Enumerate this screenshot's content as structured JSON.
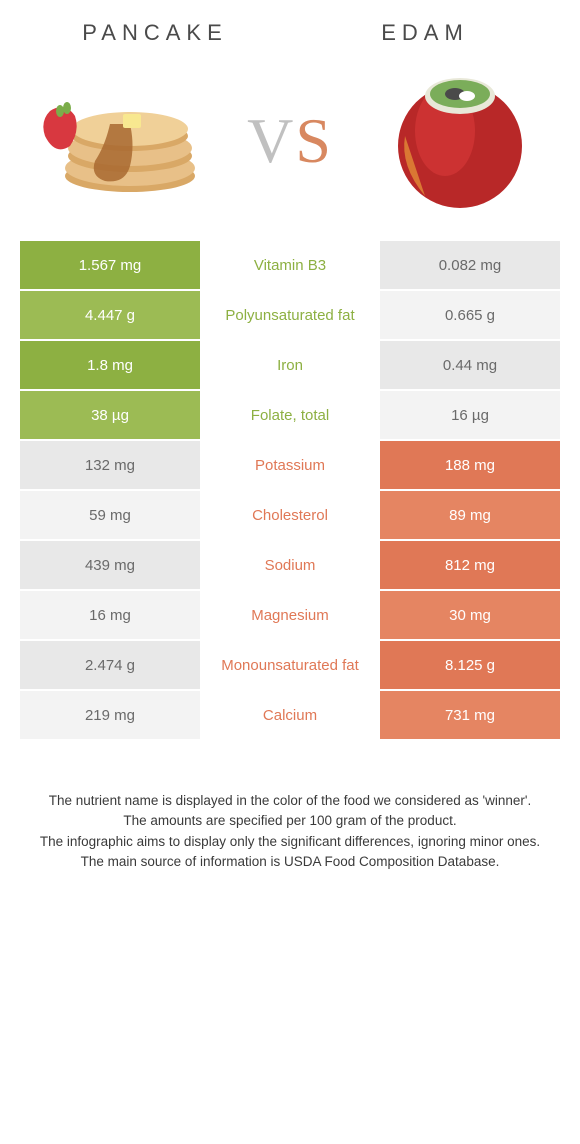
{
  "header": {
    "left_title": "PANCAKE",
    "right_title": "EDAM",
    "vs_v": "V",
    "vs_s": "S"
  },
  "colors": {
    "pancake": "#8db042",
    "pancake_alt": "#9cbb54",
    "edam": "#e07856",
    "edam_alt": "#e58562",
    "neutral_left": "#e8e8e8",
    "neutral_right": "#f3f3f3",
    "mid_pancake_text": "#8db042",
    "mid_edam_text": "#e07856"
  },
  "rows": [
    {
      "nutrient": "Vitamin B3",
      "left": "1.567 mg",
      "right": "0.082 mg",
      "winner": "left"
    },
    {
      "nutrient": "Polyunsaturated fat",
      "left": "4.447 g",
      "right": "0.665 g",
      "winner": "left"
    },
    {
      "nutrient": "Iron",
      "left": "1.8 mg",
      "right": "0.44 mg",
      "winner": "left"
    },
    {
      "nutrient": "Folate, total",
      "left": "38 µg",
      "right": "16 µg",
      "winner": "left"
    },
    {
      "nutrient": "Potassium",
      "left": "132 mg",
      "right": "188 mg",
      "winner": "right"
    },
    {
      "nutrient": "Cholesterol",
      "left": "59 mg",
      "right": "89 mg",
      "winner": "right"
    },
    {
      "nutrient": "Sodium",
      "left": "439 mg",
      "right": "812 mg",
      "winner": "right"
    },
    {
      "nutrient": "Magnesium",
      "left": "16 mg",
      "right": "30 mg",
      "winner": "right"
    },
    {
      "nutrient": "Monounsaturated fat",
      "left": "2.474 g",
      "right": "8.125 g",
      "winner": "right"
    },
    {
      "nutrient": "Calcium",
      "left": "219 mg",
      "right": "731 mg",
      "winner": "right"
    }
  ],
  "footer": {
    "line1": "The nutrient name is displayed in the color of the food we considered as 'winner'.",
    "line2": "The amounts are specified per 100 gram of the product.",
    "line3": "The infographic aims to display only the significant differences, ignoring minor ones.",
    "line4": "The main source of information is USDA Food Composition Database."
  }
}
